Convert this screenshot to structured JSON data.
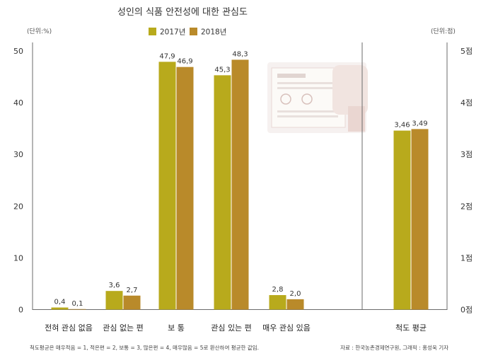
{
  "chart_data": {
    "type": "bar",
    "title": "성인의 식품 안전성에 대한 관심도",
    "left_unit": "(단위:%)",
    "right_unit": "(단위:점)",
    "categories": [
      "전혀 관심 없음",
      "관심 없는 편",
      "보  통",
      "관심 있는 편",
      "매우 관심 있음"
    ],
    "series": [
      {
        "name": "2017년",
        "color": "#b8aa1c",
        "values": [
          0.4,
          3.6,
          47.9,
          45.3,
          2.8
        ],
        "labels": [
          "0,4",
          "3,6",
          "47,9",
          "45,3",
          "2,8"
        ]
      },
      {
        "name": "2018년",
        "color": "#b98a2a",
        "values": [
          0.1,
          2.7,
          46.9,
          48.3,
          2.0
        ],
        "labels": [
          "0,1",
          "2,7",
          "46,9",
          "48,3",
          "2,0"
        ]
      }
    ],
    "ylim": [
      0,
      50
    ],
    "yticks": [
      "0",
      "10",
      "20",
      "30",
      "40",
      "50"
    ],
    "secondary": {
      "category": "척도 평균",
      "values": [
        3.46,
        3.49
      ],
      "labels": [
        "3,46",
        "3,49"
      ],
      "ylim": [
        0,
        5
      ],
      "yticks": [
        "0점",
        "1점",
        "2점",
        "3점",
        "4점",
        "5점"
      ]
    },
    "footnote_left": "척도평균은 매우적음 = 1, 적은편 = 2, 보통 = 3, 많은편 = 4, 매우많음 = 5로 환산하여 평균한 값임.",
    "footnote_right": "자료 : 한국농촌경제연구원,  그래픽 : 홍성욱 기자"
  }
}
